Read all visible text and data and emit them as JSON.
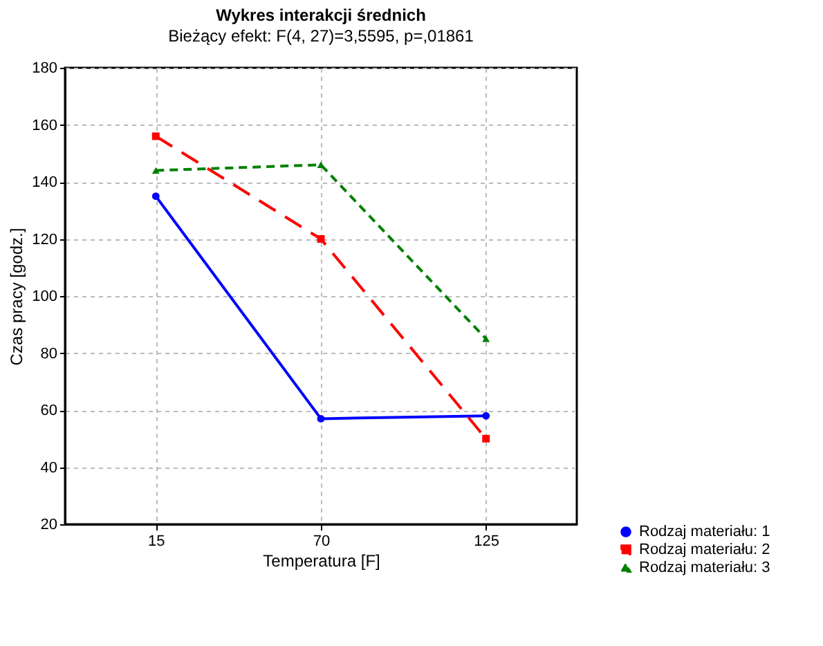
{
  "chart_data": {
    "type": "line",
    "title": "Wykres interakcji średnich",
    "subtitle": "Bieżący efekt: F(4, 27)=3,5595, p=,01861",
    "xlabel": "Temperatura [F]",
    "ylabel": "Czas pracy [godz.]",
    "categories": [
      "15",
      "70",
      "125"
    ],
    "series": [
      {
        "name": "Rodzaj materiału: 1",
        "color": "#0000ff",
        "values": [
          135,
          57,
          58
        ],
        "marker": "circle",
        "line_style": "solid"
      },
      {
        "name": "Rodzaj materiału: 2",
        "color": "#ff0000",
        "values": [
          156,
          120,
          50
        ],
        "marker": "square",
        "line_style": "dashed"
      },
      {
        "name": "Rodzaj materiału: 3",
        "color": "#008000",
        "values": [
          144,
          146,
          85
        ],
        "marker": "triangle",
        "line_style": "dotted"
      }
    ],
    "ylim": [
      20,
      180
    ],
    "yticks": [
      20,
      40,
      60,
      80,
      100,
      120,
      140,
      160,
      180
    ],
    "grid": true,
    "legend": "bottom right"
  }
}
